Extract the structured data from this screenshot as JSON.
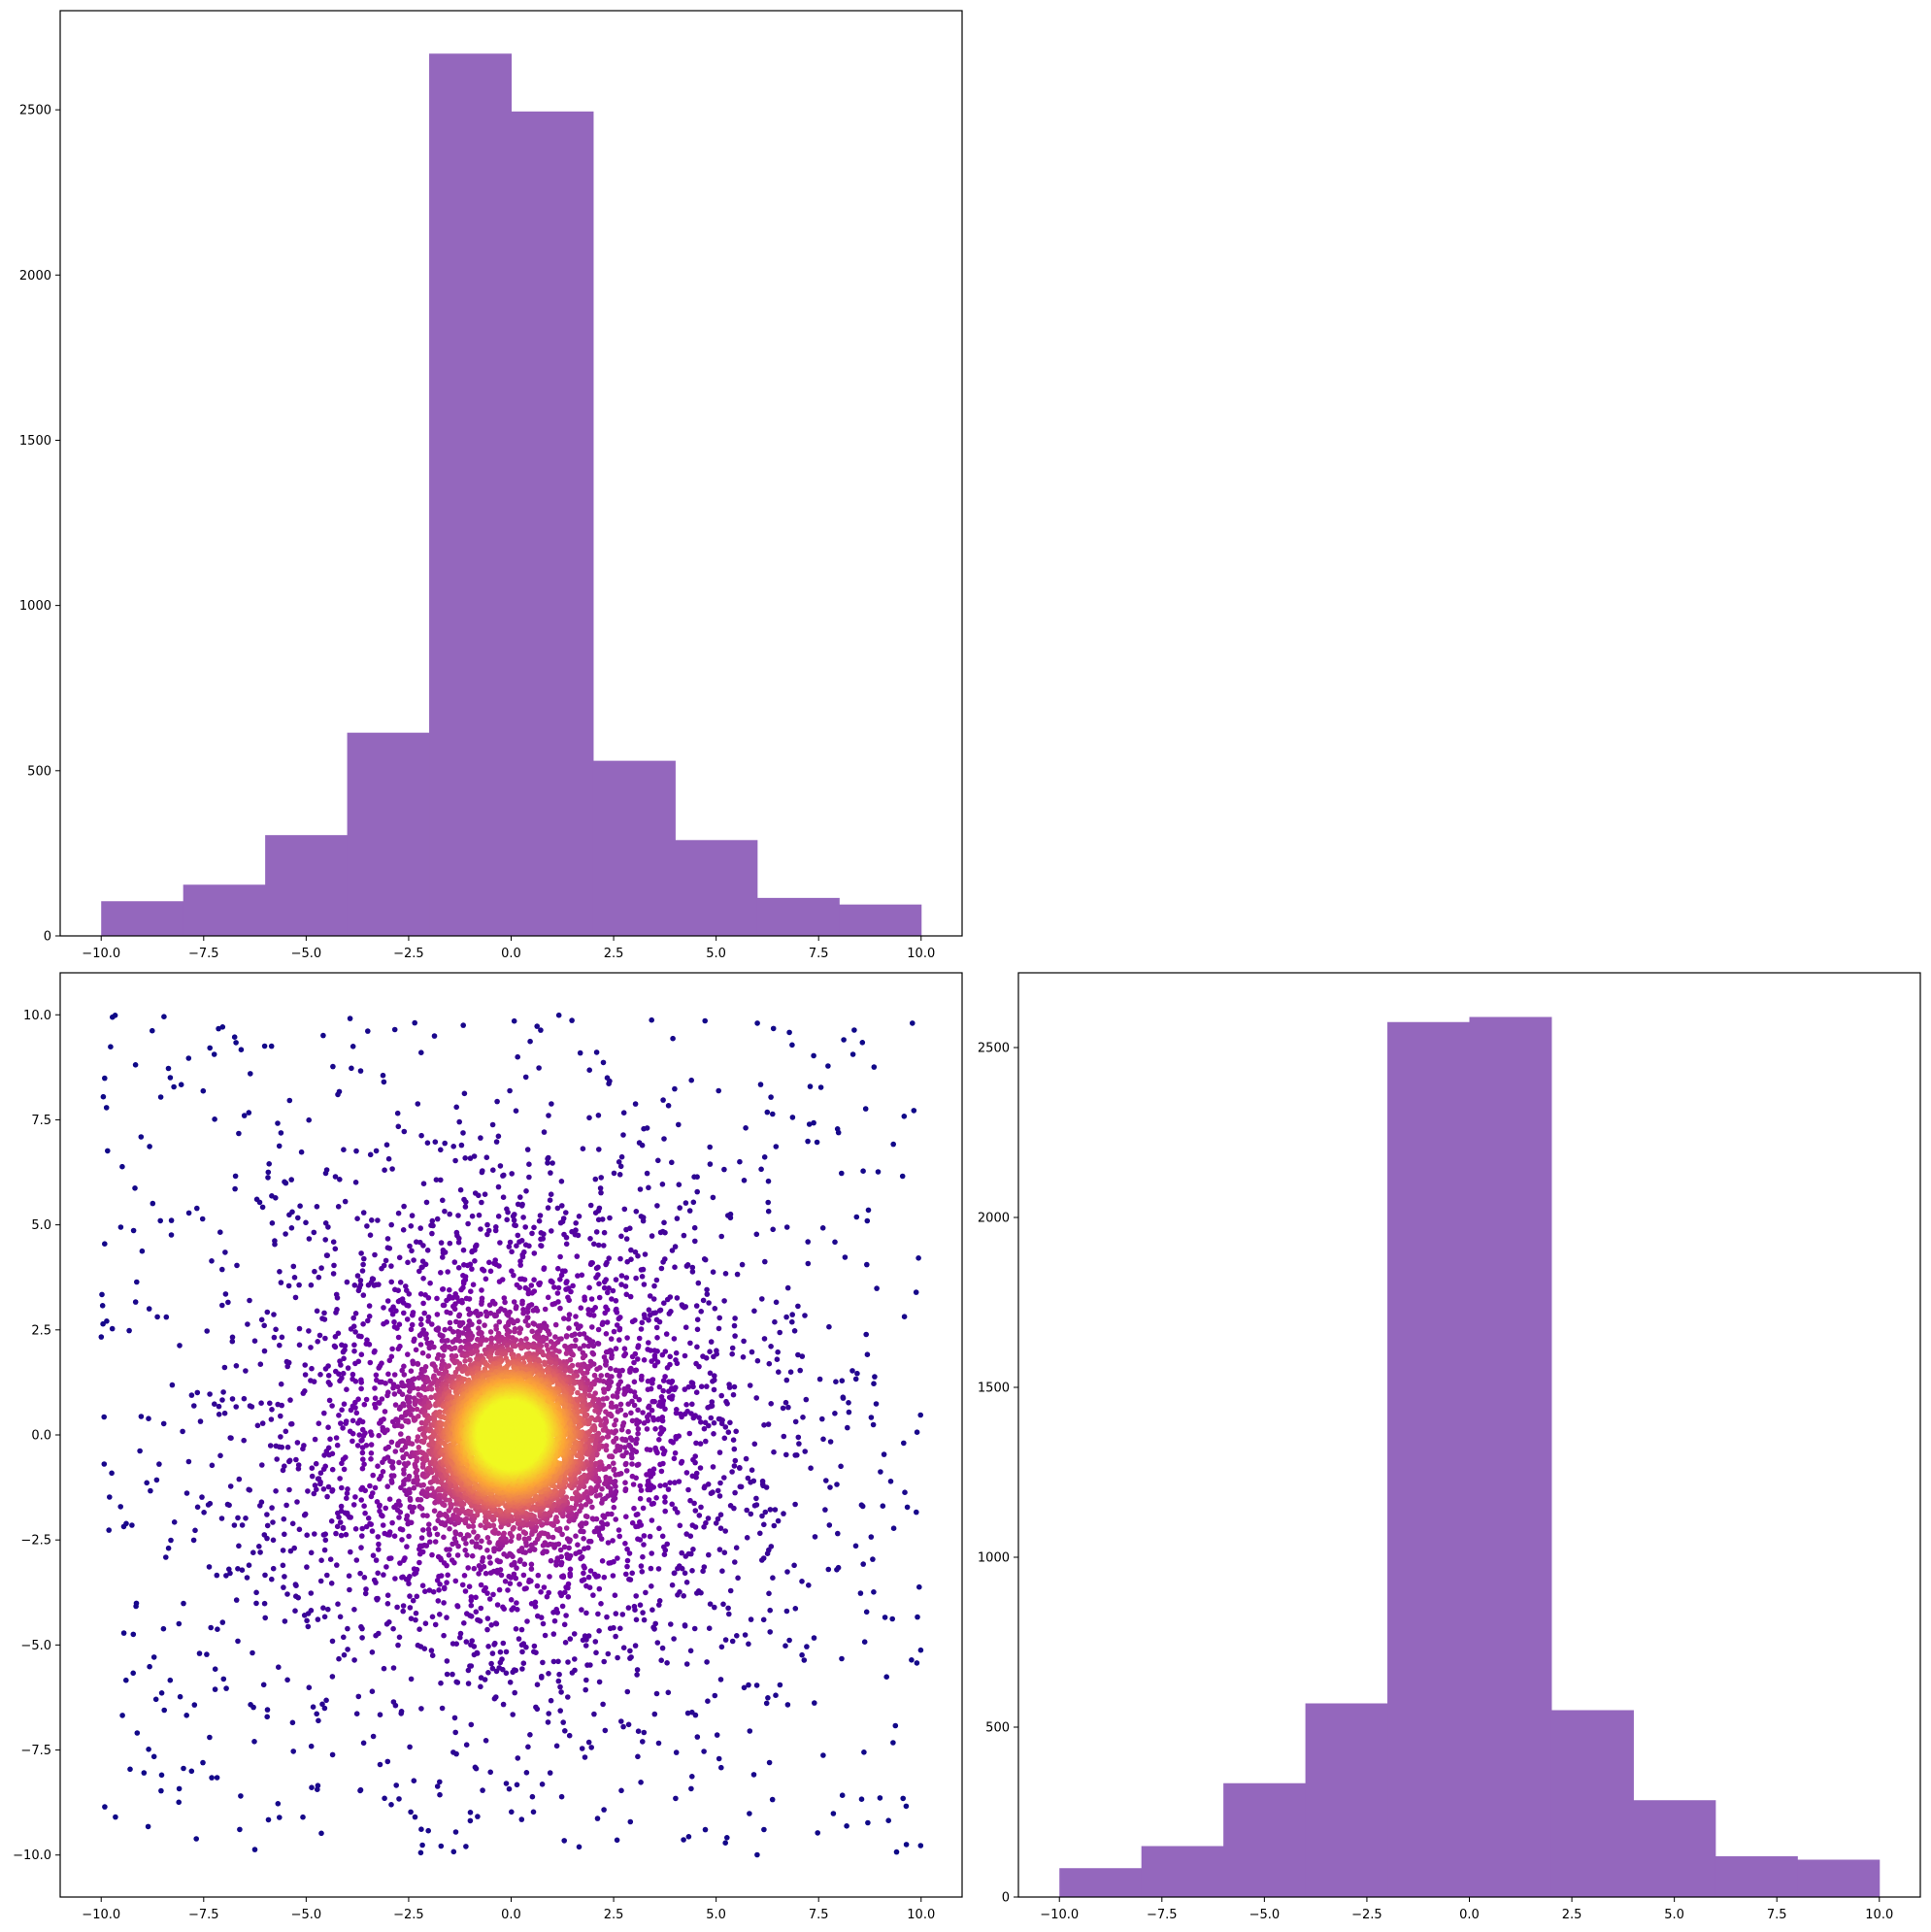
{
  "chart_data": [
    {
      "id": "top-left-histogram",
      "type": "bar",
      "title": "",
      "xlabel": "",
      "ylabel": "",
      "bar_color": "#9467bd",
      "bin_edges": [
        -10,
        -8,
        -6,
        -4,
        -2,
        0,
        2,
        4,
        6,
        8,
        10
      ],
      "values": [
        105,
        155,
        305,
        615,
        2670,
        2495,
        530,
        290,
        115,
        95
      ],
      "xlim": [
        -11,
        11
      ],
      "ylim": [
        0,
        2800
      ],
      "xticks": [
        -10,
        -7.5,
        -5,
        -2.5,
        0,
        2.5,
        5,
        7.5,
        10
      ],
      "xtick_labels": [
        "−10.0",
        "−7.5",
        "−5.0",
        "−2.5",
        "0.0",
        "2.5",
        "5.0",
        "7.5",
        "10.0"
      ],
      "yticks": [
        0,
        500,
        1000,
        1500,
        2000,
        2500
      ],
      "ytick_labels": [
        "0",
        "500",
        "1000",
        "1500",
        "2000",
        "2500"
      ],
      "grid": false
    },
    {
      "id": "bottom-left-scatter",
      "type": "scatter",
      "title": "",
      "xlabel": "",
      "ylabel": "",
      "colormap": "plasma",
      "color_by": "point density",
      "colormap_stops": [
        "#0d0887",
        "#6a00a8",
        "#b12a90",
        "#e16462",
        "#fca636",
        "#f0f921"
      ],
      "point_count": 10000,
      "distribution": "mixture: dense normal core centered at (0, 0), a wider normal halo, and a sparse uniform background over [-10, 10] × [-10, 10]",
      "xlim": [
        -11,
        11
      ],
      "ylim": [
        -11,
        11
      ],
      "xticks": [
        -10,
        -7.5,
        -5,
        -2.5,
        0,
        2.5,
        5,
        7.5,
        10
      ],
      "xtick_labels": [
        "−10.0",
        "−7.5",
        "−5.0",
        "−2.5",
        "0.0",
        "2.5",
        "5.0",
        "7.5",
        "10.0"
      ],
      "yticks": [
        -10,
        -7.5,
        -5,
        -2.5,
        0,
        2.5,
        5,
        7.5,
        10
      ],
      "ytick_labels": [
        "−10.0",
        "−7.5",
        "−5.0",
        "−2.5",
        "0.0",
        "2.5",
        "5.0",
        "7.5",
        "10.0"
      ],
      "grid": false
    },
    {
      "id": "bottom-right-histogram",
      "type": "bar",
      "title": "",
      "xlabel": "",
      "ylabel": "",
      "bar_color": "#9467bd",
      "bin_edges": [
        -10,
        -8,
        -6,
        -4,
        -2,
        0,
        2,
        4,
        6,
        8,
        10
      ],
      "values": [
        85,
        150,
        335,
        570,
        2575,
        2590,
        550,
        285,
        120,
        110
      ],
      "xlim": [
        -11,
        11
      ],
      "ylim": [
        0,
        2720
      ],
      "xticks": [
        -10,
        -7.5,
        -5,
        -2.5,
        0,
        2.5,
        5,
        7.5,
        10
      ],
      "xtick_labels": [
        "−10.0",
        "−7.5",
        "−5.0",
        "−2.5",
        "0.0",
        "2.5",
        "5.0",
        "7.5",
        "10.0"
      ],
      "yticks": [
        0,
        500,
        1000,
        1500,
        2000,
        2500
      ],
      "ytick_labels": [
        "0",
        "500",
        "1000",
        "1500",
        "2000",
        "2500"
      ],
      "grid": false
    }
  ]
}
